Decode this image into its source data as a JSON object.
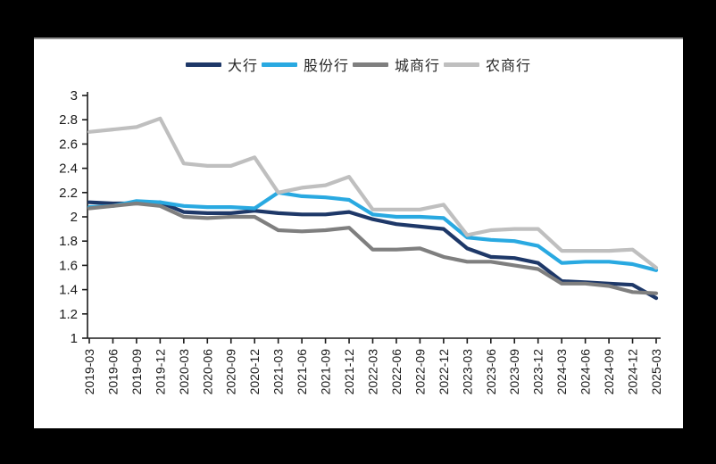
{
  "figure": {
    "canvas_bg": "#000000",
    "panel_bg": "#ffffff",
    "axis_color": "#1a1a1a",
    "label_color": "#1a1a1a"
  },
  "chart_data": {
    "type": "line",
    "title": "",
    "xlabel": "",
    "ylabel": "",
    "ylim": [
      1,
      3
    ],
    "ytick_step": 0.2,
    "ytick_labels": [
      "3",
      "2.8",
      "2.6",
      "2.4",
      "2.2",
      "2",
      "1.8",
      "1.6",
      "1.4",
      "1.2",
      "1"
    ],
    "grid": false,
    "legend_position": "top",
    "x": [
      "2019-03",
      "2019-06",
      "2019-09",
      "2019-12",
      "2020-03",
      "2020-06",
      "2020-09",
      "2020-12",
      "2021-03",
      "2021-06",
      "2021-09",
      "2021-12",
      "2022-03",
      "2022-06",
      "2022-09",
      "2022-12",
      "2023-03",
      "2023-06",
      "2023-09",
      "2023-12",
      "2024-03",
      "2024-06",
      "2024-09",
      "2024-12",
      "2025-03"
    ],
    "series": [
      {
        "name": "大行",
        "id": "large-banks",
        "color": "#1E3868",
        "values": [
          2.12,
          2.11,
          2.11,
          2.12,
          2.04,
          2.03,
          2.03,
          2.05,
          2.03,
          2.02,
          2.02,
          2.04,
          1.98,
          1.94,
          1.92,
          1.9,
          1.74,
          1.67,
          1.66,
          1.62,
          1.47,
          1.46,
          1.45,
          1.44,
          1.33
        ]
      },
      {
        "name": "股份行",
        "id": "joint-stock-banks",
        "color": "#29A9E1",
        "values": [
          2.08,
          2.09,
          2.13,
          2.12,
          2.09,
          2.08,
          2.08,
          2.07,
          2.2,
          2.17,
          2.16,
          2.14,
          2.02,
          2.0,
          2.0,
          1.99,
          1.83,
          1.81,
          1.8,
          1.76,
          1.62,
          1.63,
          1.63,
          1.61,
          1.56
        ]
      },
      {
        "name": "城商行",
        "id": "city-commercial-banks",
        "color": "#7F7F7F",
        "values": [
          2.07,
          2.09,
          2.11,
          2.09,
          2.0,
          1.99,
          2.0,
          2.0,
          1.89,
          1.88,
          1.89,
          1.91,
          1.73,
          1.73,
          1.74,
          1.67,
          1.63,
          1.63,
          1.6,
          1.57,
          1.45,
          1.45,
          1.43,
          1.38,
          1.37
        ]
      },
      {
        "name": "农商行",
        "id": "rural-commercial-banks",
        "color": "#BFBFBF",
        "values": [
          2.7,
          2.72,
          2.74,
          2.81,
          2.44,
          2.42,
          2.42,
          2.49,
          2.2,
          2.24,
          2.26,
          2.33,
          2.06,
          2.06,
          2.06,
          2.1,
          1.85,
          1.89,
          1.9,
          1.9,
          1.72,
          1.72,
          1.72,
          1.73,
          1.58
        ]
      }
    ]
  }
}
